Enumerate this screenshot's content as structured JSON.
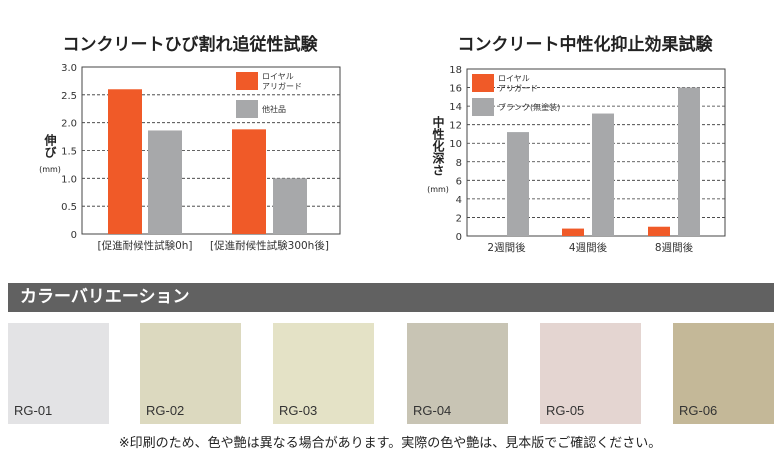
{
  "chart_data": [
    {
      "type": "bar",
      "title": "コンクリートひび割れ追従性試験",
      "ylabel": "伸び",
      "yunit": "(mm)",
      "categories": [
        "[促進耐候性試験0h]",
        "[促進耐候性試験300h後]"
      ],
      "series": [
        {
          "name": "ロイヤルアリガード",
          "legend_lines": [
            "ロイヤル",
            "アリガード"
          ],
          "color": "#f05a28",
          "values": [
            2.6,
            1.88
          ]
        },
        {
          "name": "他社品",
          "legend_lines": [
            "他社品"
          ],
          "color": "#a7a8aa",
          "values": [
            1.86,
            1.0
          ]
        }
      ],
      "ylim": [
        0,
        3.0
      ],
      "yticks": [
        "0",
        "0.5",
        "1.0",
        "1.5",
        "2.0",
        "2.5",
        "3.0"
      ],
      "grid": "dashed",
      "legend": "top-right"
    },
    {
      "type": "bar",
      "title": "コンクリート中性化抑止効果試験",
      "ylabel": "中性化深さ",
      "yunit": "(mm)",
      "categories": [
        "2週間後",
        "4週間後",
        "8週間後"
      ],
      "series": [
        {
          "name": "ロイヤルアリガード",
          "legend_lines": [
            "ロイヤル",
            "アリガード"
          ],
          "color": "#f05a28",
          "values": [
            0,
            0.8,
            1.0
          ]
        },
        {
          "name": "ブランク(無塗装)",
          "legend_lines": [
            "ブランク(無塗装)"
          ],
          "color": "#a7a8aa",
          "values": [
            11.2,
            13.2,
            16.0
          ]
        }
      ],
      "ylim": [
        0,
        18
      ],
      "yticks": [
        "0",
        "2",
        "4",
        "6",
        "8",
        "10",
        "12",
        "14",
        "16",
        "18"
      ],
      "grid": "dashed",
      "legend": "top-left"
    }
  ],
  "section": {
    "title": "カラーバリエーション"
  },
  "swatches": [
    {
      "label": "RG-01",
      "color": "#e3e3e5"
    },
    {
      "label": "RG-02",
      "color": "#dcd9bf"
    },
    {
      "label": "RG-03",
      "color": "#e4e2c6"
    },
    {
      "label": "RG-04",
      "color": "#c8c4b4"
    },
    {
      "label": "RG-05",
      "color": "#e4d5d1"
    },
    {
      "label": "RG-06",
      "color": "#c4b898"
    }
  ],
  "note": "※印刷のため、色や艶は異なる場合があります。実際の色や艶は、見本版でご確認ください。"
}
